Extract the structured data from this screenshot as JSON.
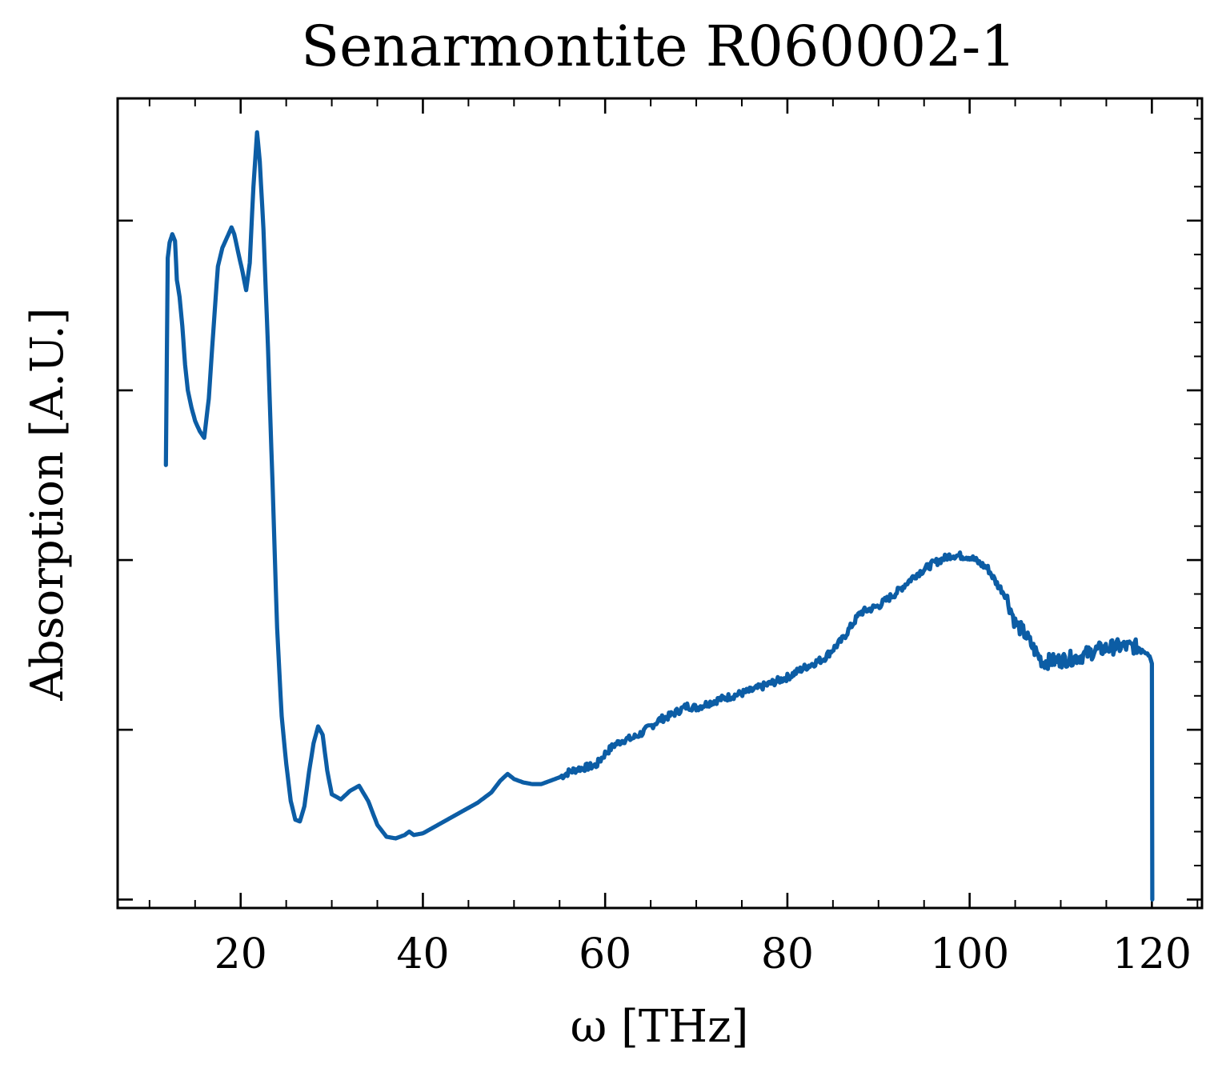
{
  "chart_data": {
    "type": "line",
    "title": "Senarmontite R060002-1",
    "xlabel": "ω [THz]",
    "ylabel": "Absorption [A.U.]",
    "xlim": [
      6.5,
      125.5
    ],
    "ylim": [
      -0.05,
      4.72
    ],
    "x_ticks": [
      20,
      40,
      60,
      80,
      100,
      120
    ],
    "y_ticks": [
      0,
      1,
      2,
      3,
      4
    ],
    "show_y_tick_labels": false,
    "grid": false,
    "legend": "none",
    "colors": {
      "series": "#0C5DA5",
      "axes": "#000000"
    },
    "series": [
      {
        "x": [
          11.8,
          11.9,
          12.0,
          12.2,
          12.5,
          12.8,
          13.0,
          13.3,
          13.6,
          13.9,
          14.2,
          14.6,
          15.0,
          15.5,
          16.0,
          16.5,
          17.0,
          17.5,
          18.0,
          18.5,
          19.0,
          19.3,
          19.7,
          20.2,
          20.6,
          21.0,
          21.4,
          21.8,
          22.1,
          22.5,
          23.0,
          23.5,
          24.0,
          24.5,
          25.0,
          25.5,
          26.0,
          26.5,
          27.0,
          27.5,
          28.0,
          28.5,
          29.0,
          29.5,
          30.0,
          31.0,
          32.0,
          33.0,
          34.0,
          35.0,
          36.0,
          37.0,
          38.0,
          38.5,
          39.0,
          40.0,
          42.0,
          44.0,
          46.0,
          47.5,
          48.5,
          49.3,
          50.0,
          51.0,
          52.0,
          53.0,
          54.0,
          55.0,
          56.0,
          57.0,
          58.0,
          59.0,
          60.0,
          61.0,
          62.0,
          63.0,
          64.0,
          65.0,
          66.0,
          67.0,
          68.0,
          69.0,
          70.0,
          72.0,
          74.0,
          76.0,
          78.0,
          80.0,
          82.0,
          84.0,
          86.0,
          88.0,
          90.0,
          92.0,
          94.0,
          96.0,
          98.0,
          100.0,
          102.0,
          103.0,
          104.0,
          105.0,
          106.0,
          107.0,
          108.0,
          110.0,
          112.0,
          114.0,
          116.0,
          118.0,
          119.5,
          120.0,
          120.05
        ],
        "y": [
          2.56,
          3.2,
          3.78,
          3.87,
          3.92,
          3.88,
          3.65,
          3.55,
          3.38,
          3.15,
          3.0,
          2.9,
          2.82,
          2.76,
          2.72,
          2.95,
          3.35,
          3.73,
          3.84,
          3.9,
          3.96,
          3.92,
          3.82,
          3.7,
          3.59,
          3.75,
          4.2,
          4.52,
          4.35,
          3.95,
          3.25,
          2.45,
          1.6,
          1.08,
          0.8,
          0.58,
          0.47,
          0.46,
          0.55,
          0.75,
          0.92,
          1.02,
          0.97,
          0.76,
          0.62,
          0.59,
          0.64,
          0.67,
          0.58,
          0.44,
          0.37,
          0.36,
          0.38,
          0.4,
          0.38,
          0.39,
          0.45,
          0.51,
          0.57,
          0.63,
          0.7,
          0.74,
          0.71,
          0.69,
          0.68,
          0.68,
          0.7,
          0.72,
          0.75,
          0.77,
          0.78,
          0.79,
          0.86,
          0.91,
          0.94,
          0.95,
          0.98,
          1.02,
          1.06,
          1.08,
          1.11,
          1.14,
          1.13,
          1.17,
          1.2,
          1.23,
          1.27,
          1.31,
          1.37,
          1.42,
          1.53,
          1.69,
          1.73,
          1.81,
          1.91,
          1.98,
          2.03,
          2.02,
          1.95,
          1.86,
          1.79,
          1.63,
          1.57,
          1.48,
          1.4,
          1.41,
          1.43,
          1.47,
          1.49,
          1.49,
          1.48,
          1.39,
          0.0
        ]
      }
    ]
  }
}
